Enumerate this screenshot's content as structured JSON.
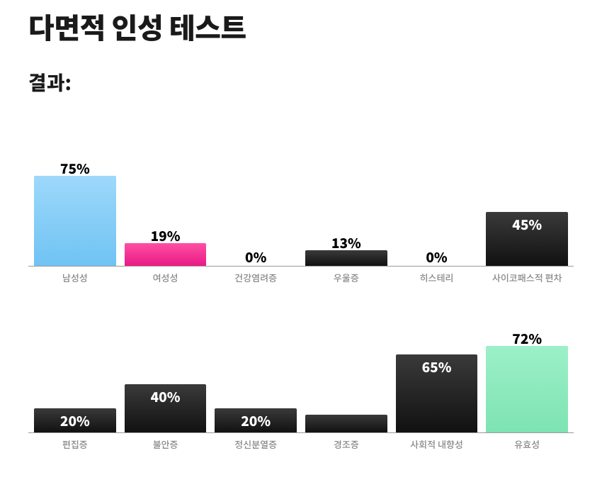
{
  "title": "다면적 인성 테스트",
  "subtitle": "결과:",
  "chart": {
    "type": "bar",
    "max_value": 100,
    "axis_color": "#9a9a9a",
    "default_bar_fill": "linear-gradient(180deg,#3a3a3a,#111111)",
    "default_text_color": "#000000",
    "on_bar_text_color": "#ffffff",
    "label_color": "#8a8a8a",
    "label_fontsize": 13,
    "pct_fontsize": 19,
    "rows": [
      {
        "bars": [
          {
            "label": "남성성",
            "value": 75,
            "fill": "linear-gradient(180deg,#9ed8fb,#6fc3f3)",
            "text_color": "#000000"
          },
          {
            "label": "여성성",
            "value": 19,
            "fill": "linear-gradient(180deg,#ff4fa3,#e81b86)",
            "text_color": "#000000"
          },
          {
            "label": "건강염려증",
            "value": 0,
            "fill": "linear-gradient(180deg,#3a3a3a,#111111)",
            "text_color": "#000000"
          },
          {
            "label": "우울증",
            "value": 13,
            "fill": "linear-gradient(180deg,#3a3a3a,#111111)",
            "text_color": "#000000"
          },
          {
            "label": "히스테리",
            "value": 0,
            "fill": "linear-gradient(180deg,#3a3a3a,#111111)",
            "text_color": "#000000"
          },
          {
            "label": "사이코패스적 편차",
            "value": 45,
            "fill": "linear-gradient(180deg,#3a3a3a,#111111)",
            "text_color": "#ffffff"
          }
        ]
      },
      {
        "bars": [
          {
            "label": "편집증",
            "value": 20,
            "fill": "linear-gradient(180deg,#3a3a3a,#111111)",
            "text_color": "#ffffff"
          },
          {
            "label": "불안증",
            "value": 40,
            "fill": "linear-gradient(180deg,#3a3a3a,#111111)",
            "text_color": "#ffffff"
          },
          {
            "label": "정신분열증",
            "value": 20,
            "fill": "linear-gradient(180deg,#3a3a3a,#111111)",
            "text_color": "#ffffff"
          },
          {
            "label": "경조증",
            "value": 15,
            "fill": "linear-gradient(180deg,#3a3a3a,#111111)",
            "text_color": "#ffffff"
          },
          {
            "label": "사회적 내향성",
            "value": 65,
            "fill": "linear-gradient(180deg,#3a3a3a,#111111)",
            "text_color": "#ffffff"
          },
          {
            "label": "유효성",
            "value": 72,
            "fill": "linear-gradient(180deg,#9cf0c8,#7ee3b2)",
            "text_color": "#000000"
          }
        ]
      }
    ]
  }
}
